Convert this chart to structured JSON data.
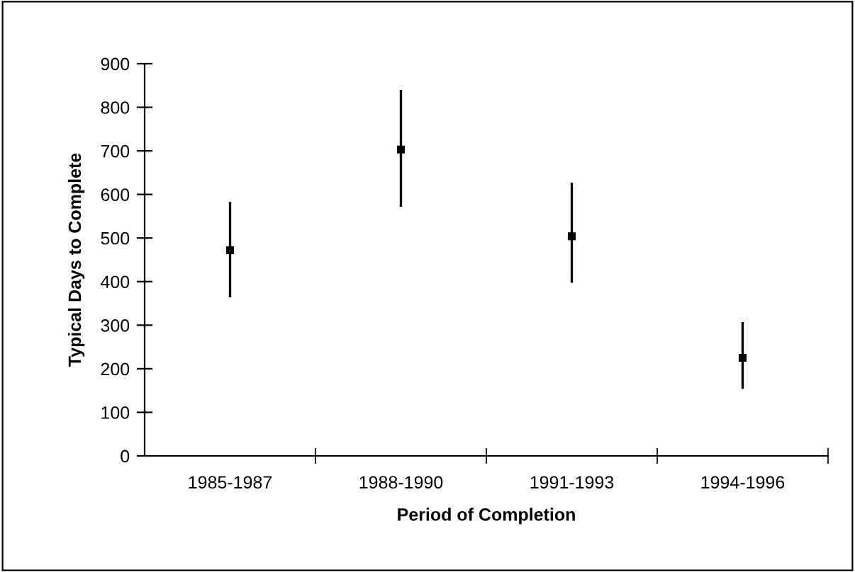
{
  "chart_data": {
    "type": "scatter",
    "xlabel": "Period of Completion",
    "ylabel": "Typical Days to Complete",
    "categories": [
      "1985-1987",
      "1988-1990",
      "1991-1993",
      "1994-1996"
    ],
    "values": [
      472,
      703,
      504,
      225
    ],
    "errors": [
      [
        364,
        583
      ],
      [
        572,
        840
      ],
      [
        397,
        627
      ],
      [
        154,
        307
      ]
    ],
    "color": "#000000",
    "marker": "square",
    "ylim": [
      0,
      900
    ],
    "yticks": [
      0,
      100,
      200,
      300,
      400,
      500,
      600,
      700,
      800,
      900
    ],
    "grid": false,
    "legend": false
  }
}
